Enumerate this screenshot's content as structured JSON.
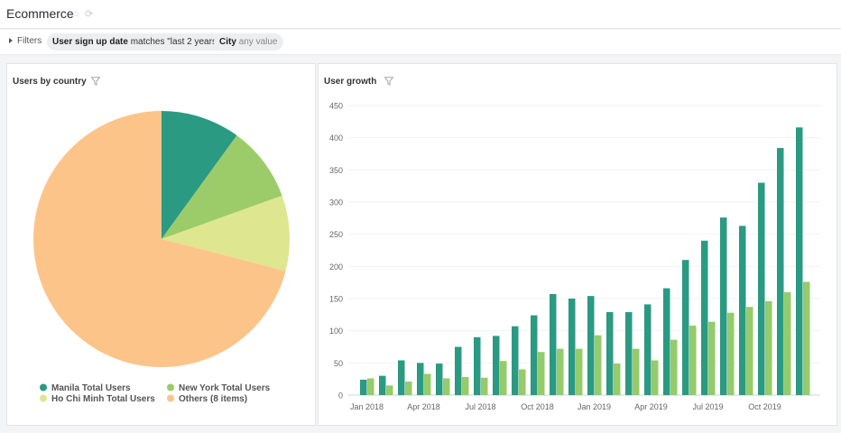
{
  "header": {
    "title": "Ecommerce",
    "star_icon": "star-icon",
    "refresh_icon": "refresh-icon"
  },
  "filters": {
    "label": "Filters",
    "chips": [
      {
        "field": "User sign up date",
        "condition": "matches \"last 2 years\""
      },
      {
        "field": "City",
        "condition": "any value"
      }
    ]
  },
  "colors": {
    "dark_green": "#2a9a82",
    "light_green": "#94cb6b",
    "pale": "#dfe690",
    "orange": "#fdc489"
  },
  "chart_data": [
    {
      "type": "pie",
      "title": "Users by country",
      "slices": [
        {
          "label": "Manila Total Users",
          "value": 10,
          "color": "#2a9a82"
        },
        {
          "label": "New York Total Users",
          "value": 9.5,
          "color": "#9bcc69"
        },
        {
          "label": "Ho Chi Minh Total Users",
          "value": 9.5,
          "color": "#dfe690"
        },
        {
          "label": "Others (8 items)",
          "value": 71,
          "color": "#fdc489"
        }
      ],
      "legend_position": "bottom"
    },
    {
      "type": "bar",
      "title": "User growth",
      "ylim": [
        0,
        450
      ],
      "yticks": [
        0,
        50,
        100,
        150,
        200,
        250,
        300,
        350,
        400,
        450
      ],
      "x": [
        "2018-01",
        "2018-02",
        "2018-03",
        "2018-04",
        "2018-05",
        "2018-06",
        "2018-07",
        "2018-08",
        "2018-09",
        "2018-10",
        "2018-11",
        "2018-12",
        "2019-01",
        "2019-02",
        "2019-03",
        "2019-04",
        "2019-05",
        "2019-06",
        "2019-07",
        "2019-08",
        "2019-09",
        "2019-10",
        "2019-11",
        "2019-12"
      ],
      "xtick_labels": [
        {
          "index": 0,
          "label": "Jan 2018"
        },
        {
          "index": 3,
          "label": "Apr 2018"
        },
        {
          "index": 6,
          "label": "Jul 2018"
        },
        {
          "index": 9,
          "label": "Oct 2018"
        },
        {
          "index": 12,
          "label": "Jan 2019"
        },
        {
          "index": 15,
          "label": "Apr 2019"
        },
        {
          "index": 18,
          "label": "Jul 2019"
        },
        {
          "index": 21,
          "label": "Oct 2019"
        }
      ],
      "series": [
        {
          "color": "#2a9a82",
          "values": [
            24,
            30,
            54,
            50,
            49,
            75,
            90,
            92,
            107,
            124,
            157,
            150,
            154,
            129,
            129,
            141,
            166,
            210,
            240,
            276,
            263,
            330,
            384,
            416
          ]
        },
        {
          "color": "#94cb6b",
          "values": [
            26,
            15,
            21,
            33,
            26,
            28,
            27,
            53,
            40,
            67,
            72,
            72,
            93,
            49,
            72,
            54,
            86,
            108,
            114,
            128,
            137,
            146,
            160,
            176
          ]
        }
      ]
    }
  ]
}
